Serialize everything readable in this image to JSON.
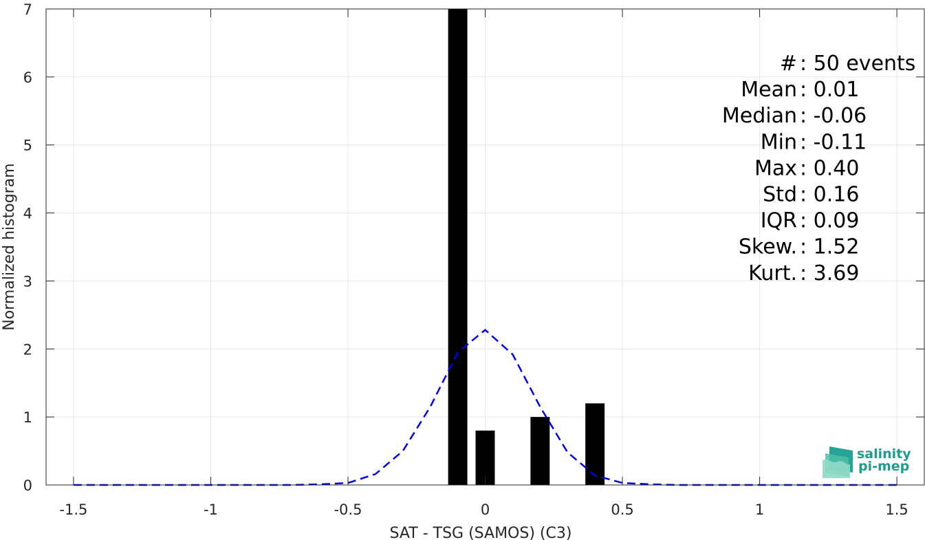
{
  "chart_data": {
    "type": "bar",
    "xlabel": "SAT - TSG (SAMOS) (C3)",
    "ylabel": "Normalized histogram",
    "xlim": [
      -1.6,
      1.6
    ],
    "ylim": [
      0,
      7
    ],
    "xticks": [
      -1.5,
      -1,
      -0.5,
      0,
      0.5,
      1,
      1.5
    ],
    "xtick_labels": [
      "-1.5",
      "-1",
      "-0.5",
      "0",
      "0.5",
      "1",
      "1.5"
    ],
    "yticks": [
      0,
      1,
      2,
      3,
      4,
      5,
      6,
      7
    ],
    "ytick_labels": [
      "0",
      "1",
      "2",
      "3",
      "4",
      "5",
      "6",
      "7"
    ],
    "grid": true,
    "bars": {
      "color": "#000000",
      "width": 0.07,
      "centers": [
        -0.1,
        0.0,
        0.2,
        0.4
      ],
      "values": [
        7.0,
        0.8,
        1.0,
        1.2
      ]
    },
    "fit_curve": {
      "color": "#0000ee",
      "style": "dashed",
      "x": [
        -1.5,
        -1.4,
        -1.3,
        -1.2,
        -1.1,
        -1.0,
        -0.9,
        -0.8,
        -0.7,
        -0.6,
        -0.5,
        -0.4,
        -0.3,
        -0.2,
        -0.1,
        0.0,
        0.1,
        0.2,
        0.3,
        0.4,
        0.5,
        0.6,
        0.7,
        0.8,
        0.9,
        1.0,
        1.1,
        1.2,
        1.3,
        1.4,
        1.5
      ],
      "y": [
        0,
        0,
        0,
        0,
        0,
        0,
        0,
        0,
        0,
        0.01,
        0.03,
        0.16,
        0.5,
        1.15,
        1.95,
        2.28,
        1.92,
        1.15,
        0.48,
        0.14,
        0.03,
        0.01,
        0,
        0,
        0,
        0,
        0,
        0,
        0,
        0,
        0
      ]
    },
    "stats": [
      {
        "label": "#  ",
        "sep": ": ",
        "value": "50 events"
      },
      {
        "label": "Mean ",
        "sep": ": ",
        "value": "0.01"
      },
      {
        "label": "Median ",
        "sep": ": ",
        "value": "-0.06"
      },
      {
        "label": "Min ",
        "sep": ": ",
        "value": "-0.11"
      },
      {
        "label": "Max ",
        "sep": ": ",
        "value": "0.40"
      },
      {
        "label": "Std ",
        "sep": ": ",
        "value": "0.16"
      },
      {
        "label": "IQR ",
        "sep": ": ",
        "value": "0.09"
      },
      {
        "label": "Skew. ",
        "sep": ": ",
        "value": "1.52"
      },
      {
        "label": "Kurt. ",
        "sep": ": ",
        "value": "3.69"
      }
    ]
  },
  "logo": {
    "line1": "salinity",
    "line2": "pi-mep",
    "color": "#1a9f8f"
  }
}
